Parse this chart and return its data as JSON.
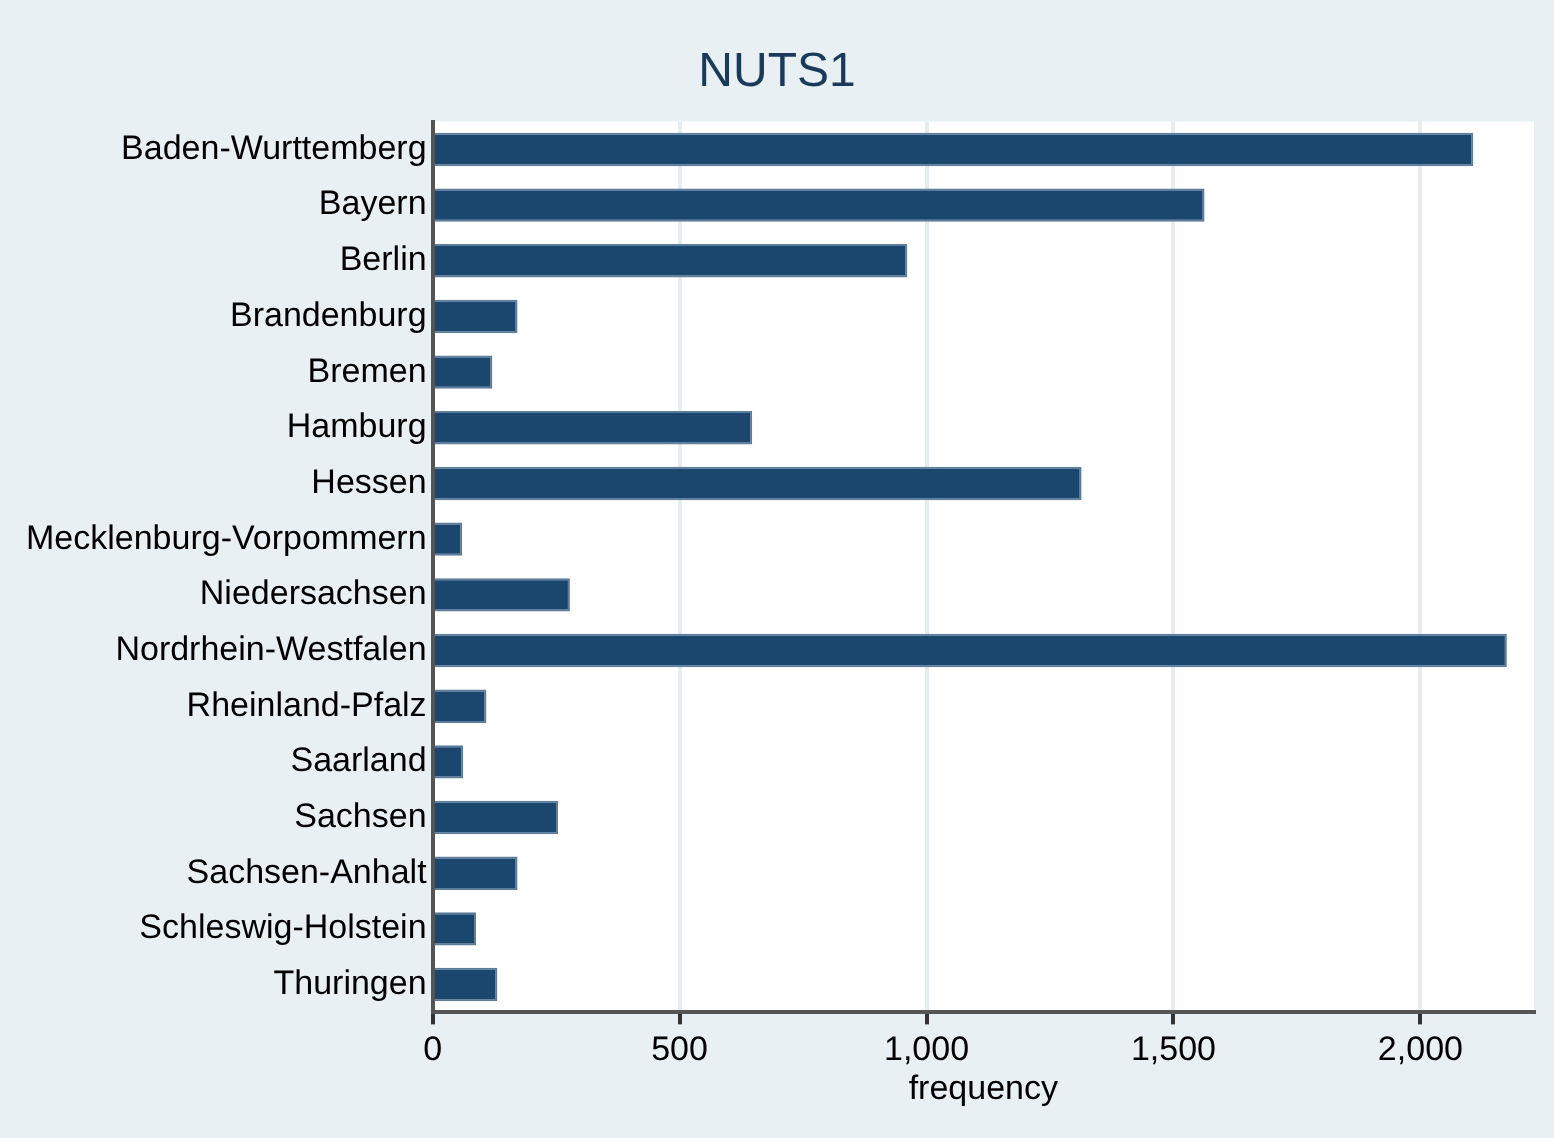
{
  "chart_data": {
    "type": "bar",
    "orientation": "horizontal",
    "title": "NUTS1",
    "xlabel": "frequency",
    "categories": [
      "Baden-Wurttemberg",
      "Bayern",
      "Berlin",
      "Brandenburg",
      "Bremen",
      "Hamburg",
      "Hessen",
      "Mecklenburg-Vorpommern",
      "Niedersachsen",
      "Nordrhein-Westfalen",
      "Rheinland-Pfalz",
      "Saarland",
      "Sachsen",
      "Sachsen-Anhalt",
      "Schleswig-Holstein",
      "Thuringen"
    ],
    "values": [
      2107,
      1563,
      961,
      172,
      121,
      647,
      1314,
      60,
      278,
      2175,
      109,
      62,
      254,
      172,
      88,
      131
    ],
    "color": "#1b466e",
    "xlim": [
      0,
      2230
    ],
    "xticks": [
      0,
      500,
      {
        "value": 1000,
        "label": "1,000"
      },
      {
        "value": 1500,
        "label": "1,500"
      },
      {
        "value": 2000,
        "label": "2,000"
      }
    ],
    "grid": "x"
  }
}
